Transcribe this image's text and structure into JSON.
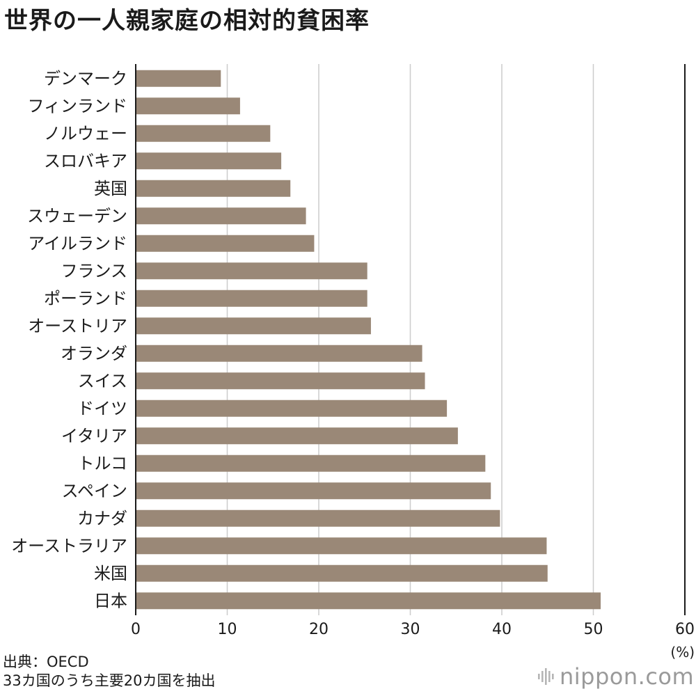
{
  "title": "世界の一人親家庭の相対的貧困率",
  "source_lines": [
    "出典：OECD",
    "33カ国のうち主要20カ国を抽出"
  ],
  "brand": {
    "text": "nippon.com",
    "icon": "sound-wave-logo-icon"
  },
  "colors": {
    "bar": "#9a8877",
    "grid": "#cccccc",
    "axis": "#1a1a1a"
  },
  "chart_data": {
    "type": "bar",
    "orientation": "horizontal",
    "title": "世界の一人親家庭の相対的貧困率",
    "categories": [
      "デンマーク",
      "フィンランド",
      "ノルウェー",
      "スロバキア",
      "英国",
      "スウェーデン",
      "アイルランド",
      "フランス",
      "ポーランド",
      "オーストリア",
      "オランダ",
      "スイス",
      "ドイツ",
      "イタリア",
      "トルコ",
      "スペイン",
      "カナダ",
      "オーストラリア",
      "米国",
      "日本"
    ],
    "values": [
      9.3,
      11.4,
      14.7,
      15.9,
      16.9,
      18.6,
      19.5,
      25.3,
      25.3,
      25.7,
      31.3,
      31.6,
      34.0,
      35.2,
      38.2,
      38.8,
      39.8,
      44.9,
      45.0,
      50.8
    ],
    "xlim": [
      0,
      60
    ],
    "xticks": [
      0,
      10,
      20,
      30,
      40,
      50,
      60
    ],
    "unit": "(%)",
    "grid": true
  }
}
